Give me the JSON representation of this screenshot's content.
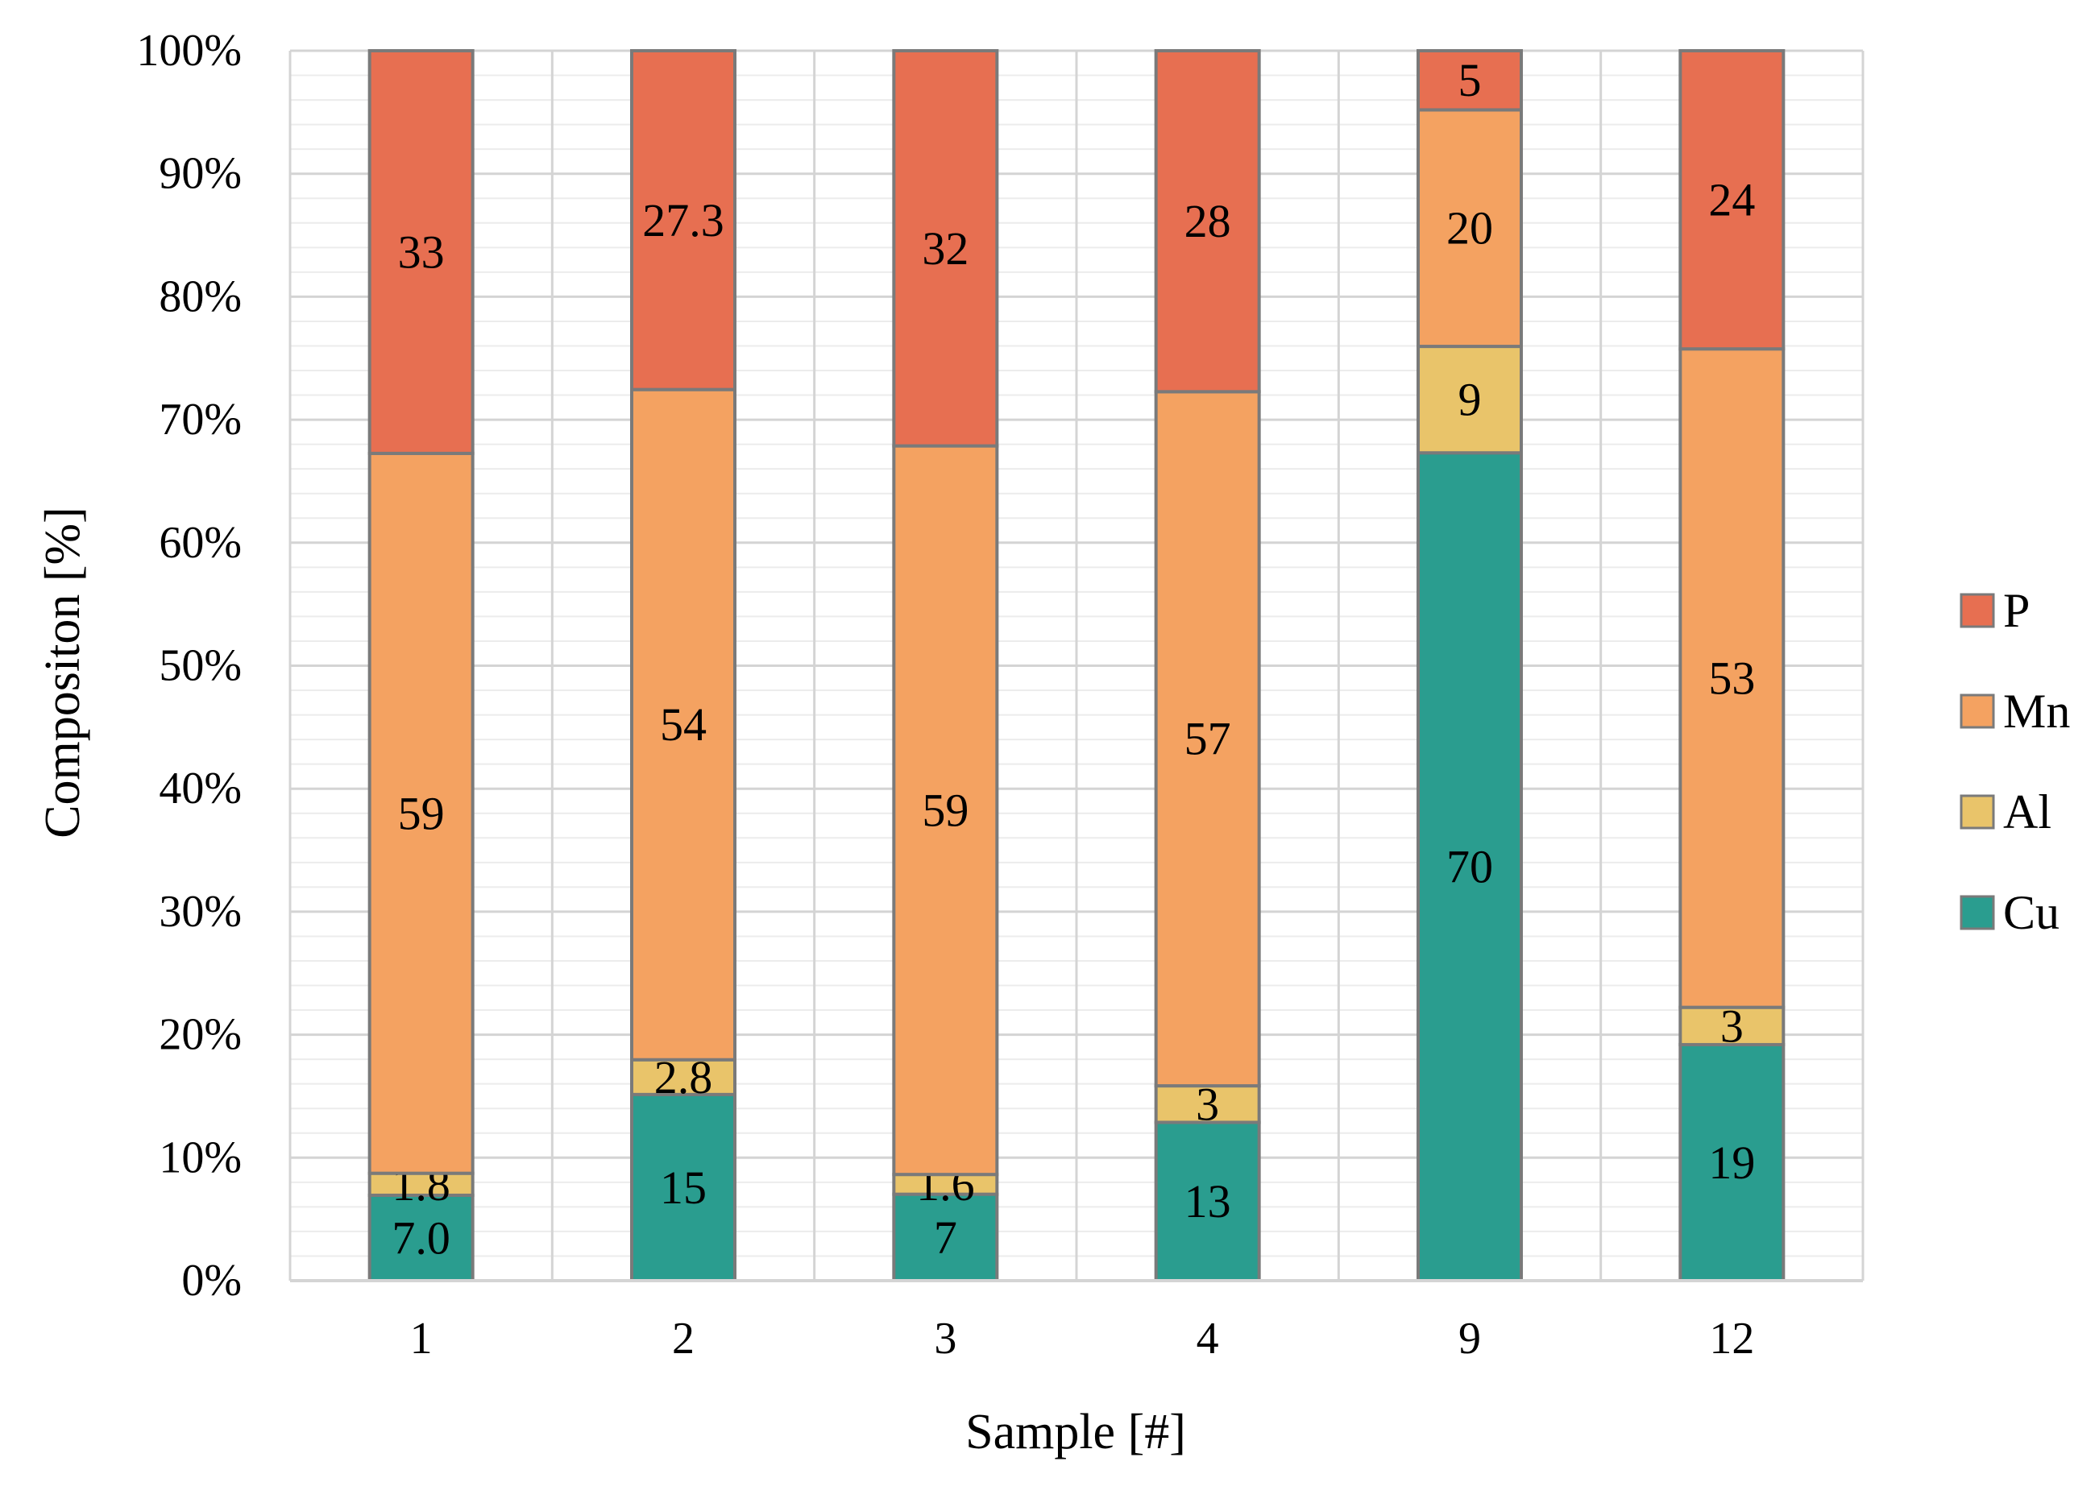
{
  "chart_data": {
    "type": "bar",
    "stacked": "percent",
    "title": "",
    "xlabel": "Sample [#]",
    "ylabel": "Compositon [%]",
    "ylim": [
      0,
      100
    ],
    "y_ticks": [
      "0%",
      "10%",
      "20%",
      "30%",
      "40%",
      "50%",
      "60%",
      "70%",
      "80%",
      "90%",
      "100%"
    ],
    "categories": [
      "1",
      "2",
      "3",
      "4",
      "9",
      "12"
    ],
    "legend_position": "right",
    "series": [
      {
        "name": "Cu",
        "color": "#2a9d8f",
        "values": [
          7.0,
          15,
          7,
          13,
          70,
          19
        ],
        "labels": [
          "7.0",
          "15",
          "7",
          "13",
          "70",
          "19"
        ]
      },
      {
        "name": "Al",
        "color": "#e9c46a",
        "values": [
          1.8,
          2.8,
          1.6,
          3,
          9,
          3
        ],
        "labels": [
          "1.8",
          "2.8",
          "1.6",
          "3",
          "9",
          "3"
        ]
      },
      {
        "name": "Mn",
        "color": "#f4a261",
        "values": [
          59,
          54,
          59,
          57,
          20,
          53
        ],
        "labels": [
          "59",
          "54",
          "59",
          "57",
          "20",
          "53"
        ]
      },
      {
        "name": "P",
        "color": "#e76f51",
        "values": [
          33,
          27.3,
          32,
          28,
          5,
          24
        ],
        "labels": [
          "33",
          "27.3",
          "32",
          "28",
          "5",
          "24"
        ]
      }
    ],
    "legend_order": [
      "P",
      "Mn",
      "Al",
      "Cu"
    ],
    "grid": true
  }
}
